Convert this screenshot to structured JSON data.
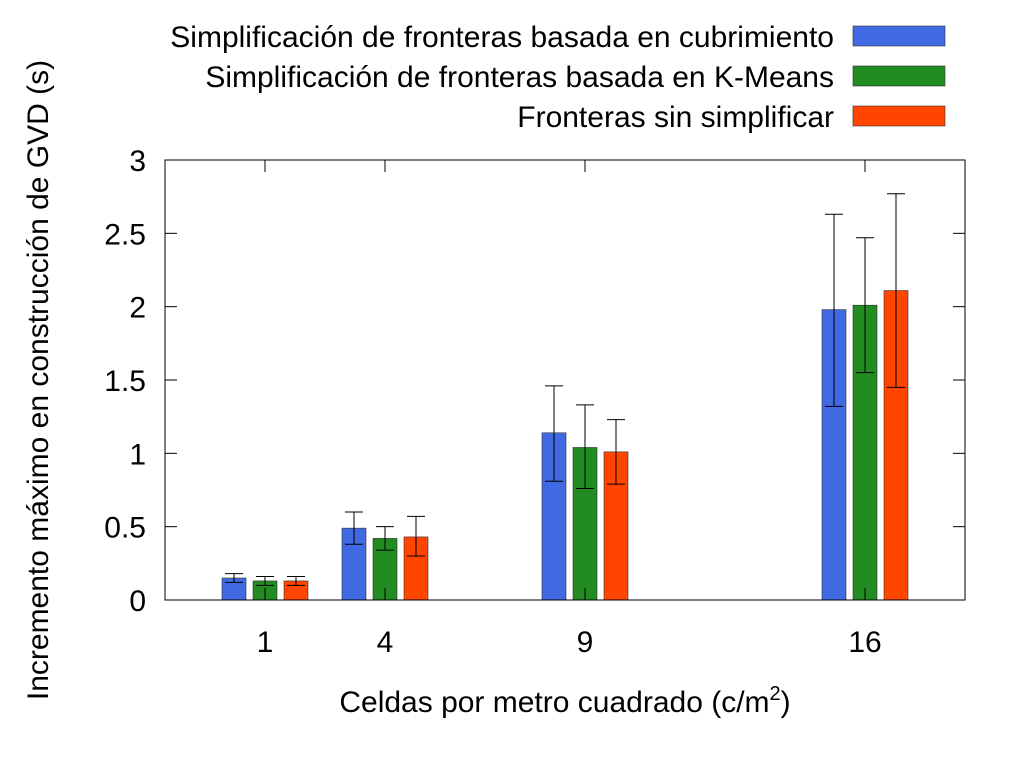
{
  "chart_data": {
    "type": "bar",
    "xlabel": "Celdas por metro cuadrado (c/m",
    "xlabel_sup": "2",
    "xlabel_suffix": ")",
    "ylabel": "Incremento máximo en construcción de GVD (s)",
    "ylim": [
      0,
      3
    ],
    "yticks": [
      "0",
      "0.5",
      "1",
      "1.5",
      "2",
      "2.5",
      "3"
    ],
    "ytick_values": [
      0,
      0.5,
      1,
      1.5,
      2,
      2.5,
      3
    ],
    "x_scale": "linear",
    "xlim": [
      -1.5,
      18.5
    ],
    "categories": [
      "1",
      "4",
      "9",
      "16"
    ],
    "x": [
      1,
      4,
      9,
      16
    ],
    "legend_position": "top-right",
    "grid": false,
    "series": [
      {
        "name": "Simplificación de fronteras basada en cubrimiento",
        "color": "#4169e1",
        "values": [
          0.15,
          0.49,
          1.14,
          1.98
        ],
        "err_low": [
          0.12,
          0.38,
          0.81,
          1.32
        ],
        "err_high": [
          0.18,
          0.6,
          1.46,
          2.63
        ]
      },
      {
        "name": "Simplificación de fronteras basada en K-Means",
        "color": "#228b22",
        "values": [
          0.13,
          0.42,
          1.04,
          2.01
        ],
        "err_low": [
          0.1,
          0.34,
          0.76,
          1.55
        ],
        "err_high": [
          0.16,
          0.5,
          1.33,
          2.47
        ]
      },
      {
        "name": "Fronteras sin simplificar",
        "color": "#ff4500",
        "values": [
          0.13,
          0.43,
          1.01,
          2.11
        ],
        "err_low": [
          0.1,
          0.3,
          0.79,
          1.45
        ],
        "err_high": [
          0.16,
          0.57,
          1.23,
          2.77
        ]
      }
    ]
  }
}
